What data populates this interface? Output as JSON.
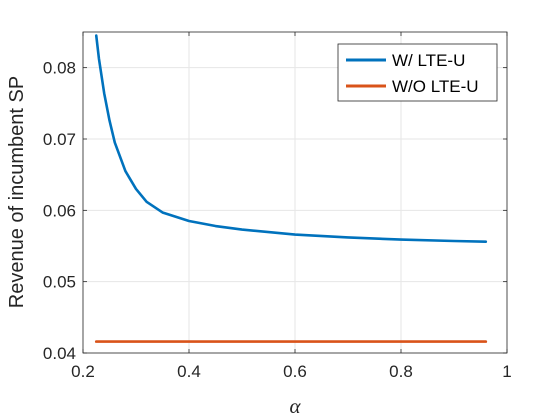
{
  "chart_data": {
    "type": "line",
    "title": "",
    "xlabel": "α",
    "ylabel": "Revenue of incumbent SP",
    "xlim": [
      0.2,
      1.0
    ],
    "ylim": [
      0.04,
      0.085
    ],
    "xticks": [
      0.2,
      0.4,
      0.6,
      0.8,
      1.0
    ],
    "xtick_labels": [
      "0.2",
      "0.4",
      "0.6",
      "0.8",
      "1"
    ],
    "yticks": [
      0.04,
      0.05,
      0.06,
      0.07,
      0.08
    ],
    "ytick_labels": [
      "0.04",
      "0.05",
      "0.06",
      "0.07",
      "0.08"
    ],
    "grid": true,
    "legend_position": "top-right",
    "colors": {
      "series1": "#0072BD",
      "series2": "#D95319",
      "grid": "#e6e6e6",
      "axes": "#262626"
    },
    "series": [
      {
        "name": "W/ LTE-U",
        "x": [
          0.225,
          0.23,
          0.24,
          0.25,
          0.26,
          0.28,
          0.3,
          0.32,
          0.35,
          0.4,
          0.45,
          0.5,
          0.6,
          0.7,
          0.8,
          0.9,
          0.96
        ],
        "values": [
          0.0845,
          0.0813,
          0.0764,
          0.0726,
          0.0695,
          0.0655,
          0.063,
          0.0612,
          0.0597,
          0.0585,
          0.0578,
          0.0573,
          0.0566,
          0.0562,
          0.0559,
          0.0557,
          0.0556
        ]
      },
      {
        "name": "W/O LTE-U",
        "x": [
          0.225,
          0.96
        ],
        "values": [
          0.0416,
          0.0416
        ]
      }
    ]
  }
}
